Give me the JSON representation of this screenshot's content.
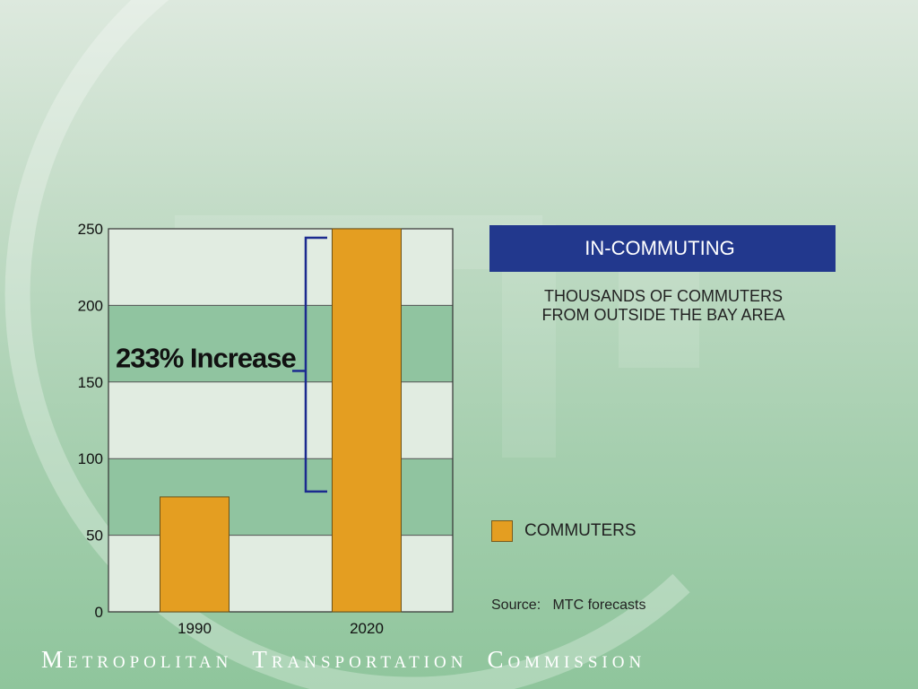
{
  "chart_data": {
    "type": "bar",
    "title": "IN-COMMUTING",
    "subtitle_lines": [
      "THOUSANDS OF COMMUTERS",
      "FROM OUTSIDE THE BAY AREA"
    ],
    "categories": [
      "1990",
      "2020"
    ],
    "series": [
      {
        "name": "COMMUTERS",
        "values": [
          75,
          250
        ]
      }
    ],
    "ylim": [
      0,
      250
    ],
    "yticks": [
      0,
      50,
      100,
      150,
      200,
      250
    ],
    "annotation": {
      "text": "233% Increase",
      "from": 75,
      "to": 250
    },
    "grid": "alternating horizontal bands",
    "legend_placement": "right",
    "source": "Source:   MTC forecasts",
    "colors": {
      "bar": "#e49e21",
      "band_light": "#e1ece1",
      "band_dark": "#90c4a0",
      "bracket": "#1b2a8f",
      "title_box": "#22388d"
    }
  },
  "footer": {
    "words": [
      "Metropolitan",
      "Transportation",
      "Commission"
    ]
  }
}
